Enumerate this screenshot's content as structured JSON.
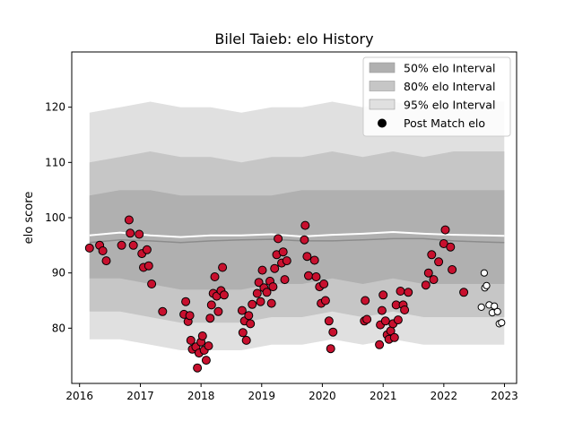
{
  "chart_data": {
    "type": "scatter",
    "title": "Bilel Taieb: elo History",
    "xlabel": "",
    "ylabel": "elo score",
    "xlim": [
      "2015-11-15",
      "2023-03-15"
    ],
    "ylim": [
      70,
      130
    ],
    "x_ticks": [
      "2016",
      "2017",
      "2018",
      "2019",
      "2020",
      "2021",
      "2022",
      "2023"
    ],
    "y_ticks": [
      80,
      90,
      100,
      110,
      120
    ],
    "grid": false,
    "legend_position": "top-right",
    "legend": [
      {
        "label": "50% elo Interval",
        "kind": "band",
        "color": "#b0b0b0"
      },
      {
        "label": "80% elo Interval",
        "kind": "band",
        "color": "#c6c6c6"
      },
      {
        "label": "95% elo Interval",
        "kind": "band",
        "color": "#e0e0e0"
      },
      {
        "label": "Post Match elo",
        "kind": "marker",
        "color": "#000000"
      }
    ],
    "colors": {
      "band50": "#b0b0b0",
      "band80": "#c6c6c6",
      "band95": "#e0e0e0",
      "median_line": "#8c8c8c",
      "mean_line": "#ffffff",
      "point_fill": "#c8102e",
      "recent_point_fill": "#ffffff",
      "point_edge": "#000000"
    },
    "bands": {
      "x": [
        "2016-03-01",
        "2016-09-01",
        "2017-03-01",
        "2017-09-01",
        "2018-03-01",
        "2018-09-01",
        "2019-03-01",
        "2019-09-01",
        "2020-03-01",
        "2020-09-01",
        "2021-03-01",
        "2021-09-01",
        "2022-03-01",
        "2022-09-01",
        "2022-12-31"
      ],
      "p95_upper": [
        119,
        120,
        121,
        120,
        120,
        119,
        120,
        120,
        121,
        120,
        121,
        120,
        121,
        121,
        121
      ],
      "p80_upper": [
        110,
        111,
        112,
        111,
        111,
        110,
        111,
        111,
        112,
        111,
        112,
        111,
        112,
        112,
        112
      ],
      "p50_upper": [
        104,
        105,
        105,
        104,
        104,
        104,
        104,
        105,
        105,
        105,
        105,
        105,
        105,
        105,
        105
      ],
      "p50_lower": [
        89,
        89,
        88,
        87,
        87,
        87,
        88,
        88,
        89,
        88,
        89,
        88,
        88,
        88,
        88
      ],
      "p80_lower": [
        83,
        83,
        82,
        81,
        81,
        81,
        82,
        82,
        83,
        82,
        83,
        82,
        82,
        82,
        82
      ],
      "p95_lower": [
        78,
        78,
        77,
        76,
        76,
        76,
        77,
        77,
        78,
        77,
        78,
        77,
        77,
        77,
        77
      ],
      "median": [
        95.5,
        96.0,
        95.8,
        95.5,
        95.8,
        96.0,
        96.1,
        95.8,
        95.8,
        96.0,
        96.2,
        96.2,
        95.8,
        95.6,
        95.5
      ],
      "mean": [
        96.8,
        97.3,
        96.8,
        96.5,
        96.8,
        96.8,
        97.0,
        96.6,
        96.9,
        97.1,
        97.4,
        97.1,
        96.9,
        96.8,
        96.7
      ]
    },
    "points": [
      {
        "x": "2016-03-01",
        "y": 94.5
      },
      {
        "x": "2016-05-01",
        "y": 95.0
      },
      {
        "x": "2016-05-20",
        "y": 94.0
      },
      {
        "x": "2016-06-10",
        "y": 92.2
      },
      {
        "x": "2016-09-10",
        "y": 95.0
      },
      {
        "x": "2016-10-25",
        "y": 99.6
      },
      {
        "x": "2016-11-01",
        "y": 97.2
      },
      {
        "x": "2016-11-20",
        "y": 95.0
      },
      {
        "x": "2016-12-25",
        "y": 97.0
      },
      {
        "x": "2017-01-10",
        "y": 93.5
      },
      {
        "x": "2017-01-20",
        "y": 91.0
      },
      {
        "x": "2017-02-10",
        "y": 94.2
      },
      {
        "x": "2017-02-20",
        "y": 91.3
      },
      {
        "x": "2017-03-10",
        "y": 88.0
      },
      {
        "x": "2017-05-15",
        "y": 83.0
      },
      {
        "x": "2017-09-20",
        "y": 82.5
      },
      {
        "x": "2017-10-01",
        "y": 84.8
      },
      {
        "x": "2017-10-15",
        "y": 81.2
      },
      {
        "x": "2017-10-25",
        "y": 82.3
      },
      {
        "x": "2017-11-01",
        "y": 77.8
      },
      {
        "x": "2017-11-10",
        "y": 76.2
      },
      {
        "x": "2017-12-01",
        "y": 76.6
      },
      {
        "x": "2017-12-10",
        "y": 72.8
      },
      {
        "x": "2017-12-20",
        "y": 75.5
      },
      {
        "x": "2018-01-01",
        "y": 77.5
      },
      {
        "x": "2018-01-10",
        "y": 78.6
      },
      {
        "x": "2018-01-20",
        "y": 76.0
      },
      {
        "x": "2018-02-01",
        "y": 74.2
      },
      {
        "x": "2018-02-15",
        "y": 76.8
      },
      {
        "x": "2018-02-25",
        "y": 81.8
      },
      {
        "x": "2018-03-05",
        "y": 84.2
      },
      {
        "x": "2018-03-15",
        "y": 86.3
      },
      {
        "x": "2018-03-25",
        "y": 89.3
      },
      {
        "x": "2018-04-05",
        "y": 85.8
      },
      {
        "x": "2018-04-15",
        "y": 83.0
      },
      {
        "x": "2018-05-01",
        "y": 86.8
      },
      {
        "x": "2018-05-10",
        "y": 91.0
      },
      {
        "x": "2018-05-20",
        "y": 86.0
      },
      {
        "x": "2018-09-05",
        "y": 83.2
      },
      {
        "x": "2018-09-10",
        "y": 79.2
      },
      {
        "x": "2018-09-20",
        "y": 81.3
      },
      {
        "x": "2018-10-01",
        "y": 77.8
      },
      {
        "x": "2018-10-15",
        "y": 82.3
      },
      {
        "x": "2018-10-25",
        "y": 80.8
      },
      {
        "x": "2018-11-05",
        "y": 84.3
      },
      {
        "x": "2018-12-05",
        "y": 86.3
      },
      {
        "x": "2018-12-15",
        "y": 88.3
      },
      {
        "x": "2018-12-25",
        "y": 84.8
      },
      {
        "x": "2019-01-05",
        "y": 90.5
      },
      {
        "x": "2019-01-15",
        "y": 87.3
      },
      {
        "x": "2019-02-01",
        "y": 86.5
      },
      {
        "x": "2019-02-20",
        "y": 88.5
      },
      {
        "x": "2019-03-01",
        "y": 84.5
      },
      {
        "x": "2019-03-10",
        "y": 87.5
      },
      {
        "x": "2019-03-20",
        "y": 90.8
      },
      {
        "x": "2019-04-01",
        "y": 93.3
      },
      {
        "x": "2019-04-10",
        "y": 96.2
      },
      {
        "x": "2019-05-01",
        "y": 91.8
      },
      {
        "x": "2019-05-10",
        "y": 93.8
      },
      {
        "x": "2019-05-20",
        "y": 88.8
      },
      {
        "x": "2019-06-01",
        "y": 92.2
      },
      {
        "x": "2019-09-15",
        "y": 96.0
      },
      {
        "x": "2019-09-20",
        "y": 98.6
      },
      {
        "x": "2019-10-01",
        "y": 93.0
      },
      {
        "x": "2019-10-10",
        "y": 89.5
      },
      {
        "x": "2019-11-15",
        "y": 92.3
      },
      {
        "x": "2019-11-25",
        "y": 89.3
      },
      {
        "x": "2019-12-15",
        "y": 87.5
      },
      {
        "x": "2019-12-25",
        "y": 84.5
      },
      {
        "x": "2020-01-10",
        "y": 88.0
      },
      {
        "x": "2020-01-20",
        "y": 85.0
      },
      {
        "x": "2020-02-10",
        "y": 81.3
      },
      {
        "x": "2020-02-20",
        "y": 76.3
      },
      {
        "x": "2020-03-05",
        "y": 79.3
      },
      {
        "x": "2020-09-10",
        "y": 81.3
      },
      {
        "x": "2020-09-15",
        "y": 85.0
      },
      {
        "x": "2020-09-25",
        "y": 81.6
      },
      {
        "x": "2020-12-10",
        "y": 77.0
      },
      {
        "x": "2020-12-15",
        "y": 80.6
      },
      {
        "x": "2020-12-25",
        "y": 83.2
      },
      {
        "x": "2021-01-01",
        "y": 86.0
      },
      {
        "x": "2021-01-15",
        "y": 81.3
      },
      {
        "x": "2021-01-25",
        "y": 78.8
      },
      {
        "x": "2021-02-05",
        "y": 78.0
      },
      {
        "x": "2021-02-15",
        "y": 79.5
      },
      {
        "x": "2021-03-01",
        "y": 80.8
      },
      {
        "x": "2021-03-10",
        "y": 78.3
      },
      {
        "x": "2021-03-20",
        "y": 84.2
      },
      {
        "x": "2021-04-01",
        "y": 81.5
      },
      {
        "x": "2021-04-15",
        "y": 86.7
      },
      {
        "x": "2021-05-01",
        "y": 84.2
      },
      {
        "x": "2021-05-10",
        "y": 83.3
      },
      {
        "x": "2021-06-01",
        "y": 86.5
      },
      {
        "x": "2021-09-15",
        "y": 87.8
      },
      {
        "x": "2021-10-01",
        "y": 90.0
      },
      {
        "x": "2021-10-20",
        "y": 93.3
      },
      {
        "x": "2021-11-01",
        "y": 88.8
      },
      {
        "x": "2021-12-01",
        "y": 92.0
      },
      {
        "x": "2022-01-01",
        "y": 95.3
      },
      {
        "x": "2022-01-10",
        "y": 97.8
      },
      {
        "x": "2022-02-10",
        "y": 94.7
      },
      {
        "x": "2022-02-20",
        "y": 90.6
      },
      {
        "x": "2022-05-01",
        "y": 86.5
      },
      {
        "x": "2022-08-15",
        "y": 83.8,
        "recent": true
      },
      {
        "x": "2022-09-01",
        "y": 90.0,
        "recent": true
      },
      {
        "x": "2022-09-05",
        "y": 87.3,
        "recent": true
      },
      {
        "x": "2022-09-15",
        "y": 87.7,
        "recent": true
      },
      {
        "x": "2022-10-01",
        "y": 84.2,
        "recent": true
      },
      {
        "x": "2022-10-20",
        "y": 82.8,
        "recent": true
      },
      {
        "x": "2022-11-01",
        "y": 84.0,
        "recent": true
      },
      {
        "x": "2022-11-20",
        "y": 83.0,
        "recent": true
      },
      {
        "x": "2022-12-01",
        "y": 80.8,
        "recent": true
      },
      {
        "x": "2022-12-15",
        "y": 81.0,
        "recent": true
      }
    ]
  }
}
